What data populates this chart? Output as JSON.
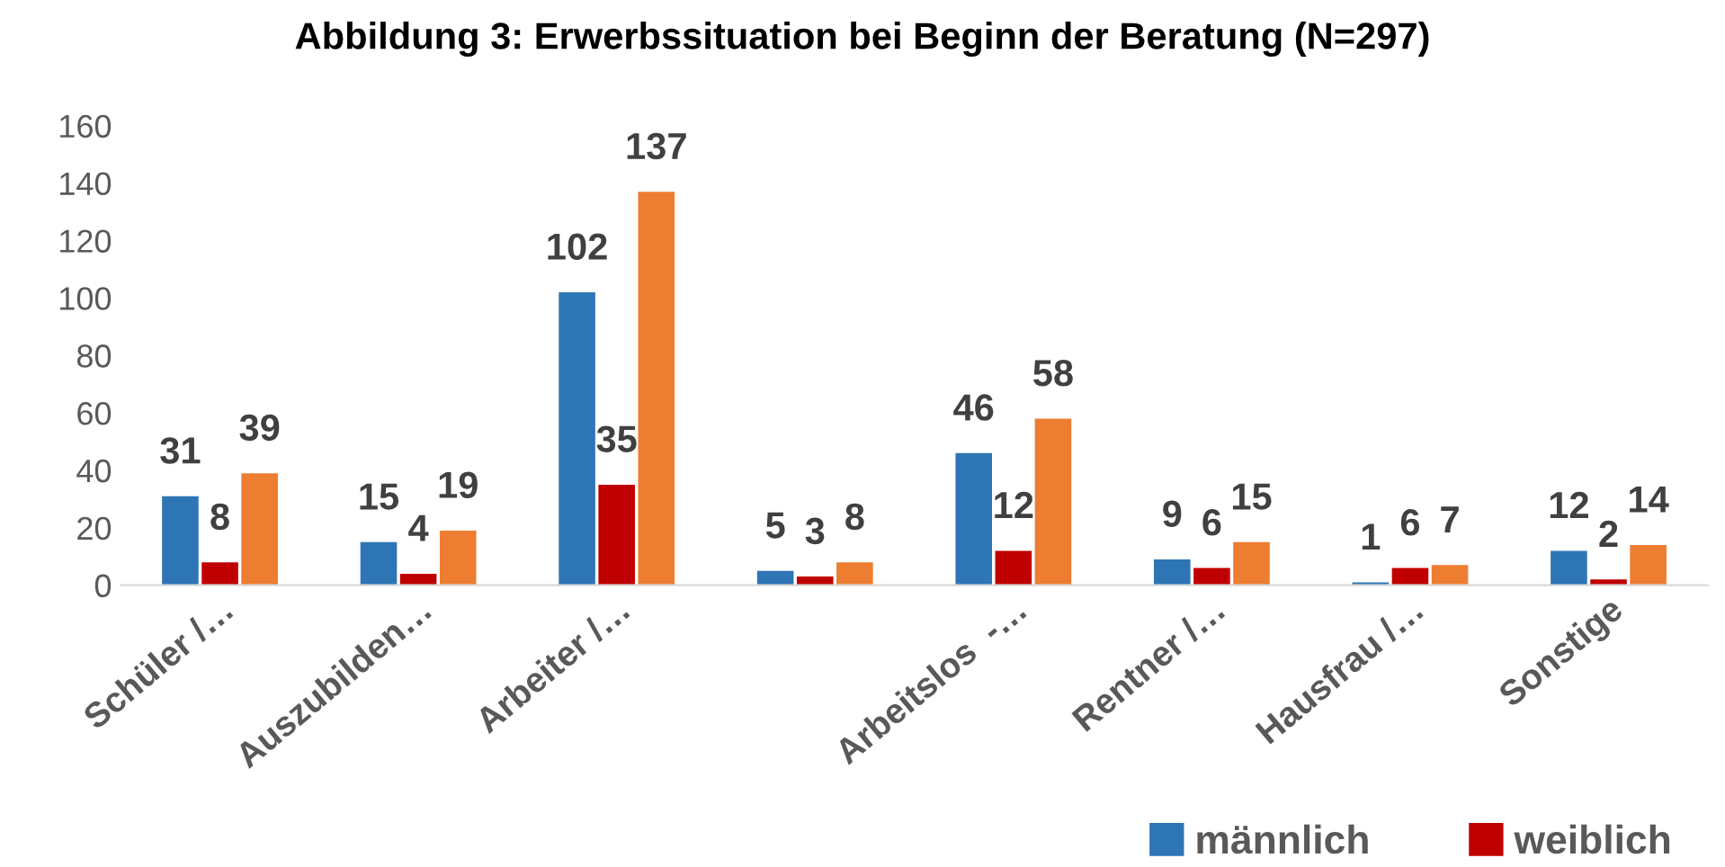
{
  "chart_data": {
    "type": "bar",
    "title": "Abbildung 3: Erwerbssituation bei Beginn der Beratung (N=297)",
    "categories": [
      "Schüler /…",
      "Auszubilden…",
      "Arbeiter /…",
      null,
      "Arbeitslos  -…",
      "Rentner /…",
      "Hausfrau /…",
      "Sonstige"
    ],
    "series": [
      {
        "name": "männlich",
        "color": "#2e75b6",
        "values": [
          31,
          15,
          102,
          5,
          46,
          9,
          1,
          12
        ]
      },
      {
        "name": "weiblich",
        "color": "#c00000",
        "values": [
          8,
          4,
          35,
          3,
          12,
          6,
          6,
          2
        ]
      },
      {
        "color": "#ed7d31",
        "values": [
          39,
          19,
          137,
          8,
          58,
          15,
          7,
          14
        ]
      }
    ],
    "ylim": [
      0,
      160
    ],
    "yticks": [
      0,
      20,
      40,
      60,
      80,
      100,
      120,
      140,
      160
    ],
    "grid": false,
    "legend": "bottom",
    "data_labels": true
  }
}
